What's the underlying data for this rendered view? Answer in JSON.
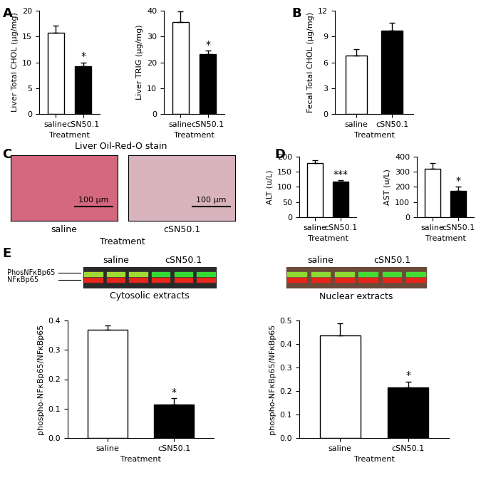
{
  "chart_data": [
    {
      "type": "bar",
      "ylabel": "Liver Total CHOL (µg/mg)",
      "xlabel": "Treatment",
      "categories": [
        "saline",
        "cSN50.1"
      ],
      "values": [
        15.7,
        9.2
      ],
      "errors": [
        1.4,
        0.8
      ],
      "colors": [
        "#ffffff",
        "#000000"
      ],
      "ylim": [
        0,
        20
      ],
      "yticks": [
        0,
        5,
        10,
        15,
        20
      ],
      "annotations": [
        {
          "category": "cSN50.1",
          "text": "*"
        }
      ]
    },
    {
      "type": "bar",
      "ylabel": "Liver TRIG (µg/mg)",
      "xlabel": "Treatment",
      "categories": [
        "saline",
        "cSN50.1"
      ],
      "values": [
        35.6,
        23.3
      ],
      "errors": [
        4.0,
        1.2
      ],
      "colors": [
        "#ffffff",
        "#000000"
      ],
      "ylim": [
        0,
        40
      ],
      "yticks": [
        0,
        10,
        20,
        30,
        40
      ],
      "annotations": [
        {
          "category": "cSN50.1",
          "text": "*"
        }
      ]
    },
    {
      "type": "bar",
      "ylabel": "Fecal Total CHOL (µg/mg)",
      "xlabel": "Treatment",
      "categories": [
        "saline",
        "cSN50.1"
      ],
      "values": [
        6.8,
        9.7
      ],
      "errors": [
        0.7,
        0.9
      ],
      "colors": [
        "#ffffff",
        "#000000"
      ],
      "ylim": [
        0,
        12
      ],
      "yticks": [
        0,
        3,
        6,
        9,
        12
      ]
    },
    {
      "type": "bar",
      "ylabel": "ALT (u/L)",
      "xlabel": "Treatment",
      "categories": [
        "saline",
        "cSN50.1"
      ],
      "values": [
        178,
        118
      ],
      "errors": [
        10,
        5
      ],
      "colors": [
        "#ffffff",
        "#000000"
      ],
      "ylim": [
        0,
        200
      ],
      "yticks": [
        0,
        50,
        100,
        150,
        200
      ],
      "annotations": [
        {
          "category": "cSN50.1",
          "text": "***"
        }
      ]
    },
    {
      "type": "bar",
      "ylabel": "AST (u/L)",
      "xlabel": "Treatment",
      "categories": [
        "saline",
        "cSN50.1"
      ],
      "values": [
        322,
        172
      ],
      "errors": [
        35,
        30
      ],
      "colors": [
        "#ffffff",
        "#000000"
      ],
      "ylim": [
        0,
        400
      ],
      "yticks": [
        0,
        100,
        200,
        300,
        400
      ],
      "annotations": [
        {
          "category": "cSN50.1",
          "text": "*"
        }
      ]
    },
    {
      "type": "bar",
      "ylabel": "phospho-NFκBp65/NFκBp65",
      "xlabel": "Treatment",
      "categories": [
        "saline",
        "cSN50.1"
      ],
      "values": [
        0.368,
        0.115
      ],
      "errors": [
        0.015,
        0.02
      ],
      "colors": [
        "#ffffff",
        "#000000"
      ],
      "ylim": [
        0.0,
        0.4
      ],
      "yticks": [
        0.0,
        0.1,
        0.2,
        0.3,
        0.4
      ],
      "annotations": [
        {
          "category": "cSN50.1",
          "text": "*"
        }
      ]
    },
    {
      "type": "bar",
      "ylabel": "phospho-NFκBp65/NFκBp65",
      "xlabel": "Treatment",
      "categories": [
        "saline",
        "cSN50.1"
      ],
      "values": [
        0.437,
        0.215
      ],
      "errors": [
        0.05,
        0.025
      ],
      "colors": [
        "#ffffff",
        "#000000"
      ],
      "ylim": [
        0.0,
        0.5
      ],
      "yticks": [
        0.0,
        0.1,
        0.2,
        0.3,
        0.4,
        0.5
      ],
      "annotations": [
        {
          "category": "cSN50.1",
          "text": "*"
        }
      ]
    }
  ],
  "panel_labels": [
    "A",
    "B",
    "C",
    "D",
    "E"
  ],
  "stain_images": {
    "title": "Liver Oil-Red-O stain",
    "scale_bar": "100 µm",
    "lanes": [
      "saline",
      "cSN50.1"
    ],
    "xlabel": "Treatment"
  },
  "blots": {
    "band_labels": [
      "PhosNFκBp65",
      "NFκBp65"
    ],
    "panels": [
      {
        "title": "Cytosolic extracts",
        "lanes": [
          "saline",
          "cSN50.1"
        ]
      },
      {
        "title": "Nuclear extracts",
        "lanes": [
          "saline",
          "cSN50.1"
        ]
      }
    ]
  }
}
